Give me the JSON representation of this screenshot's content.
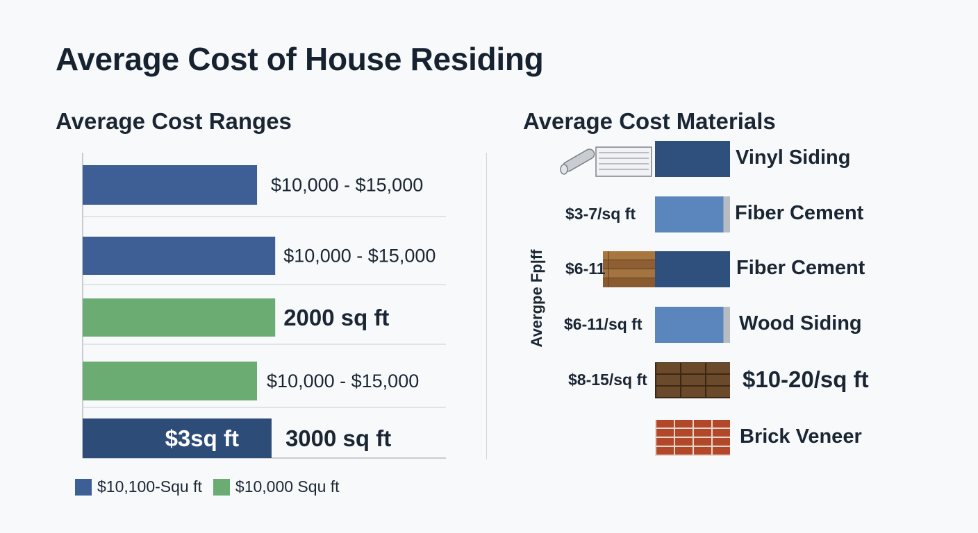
{
  "title": "Average Cost of House Residing",
  "left_panel": {
    "subtitle": "Average Cost Ranges",
    "legend": [
      {
        "label": "$10,100-Squ ft",
        "color": "#3d5f95"
      },
      {
        "label": "$10,000 Squ ft",
        "color": "#6aac72"
      }
    ]
  },
  "chart_data": [
    {
      "type": "bar",
      "orientation": "horizontal",
      "title": "Average Cost Ranges",
      "categories": [
        "",
        "",
        "",
        "",
        ""
      ],
      "values": [
        0.48,
        0.53,
        0.53,
        0.48,
        0.52
      ],
      "value_units": "fraction of plot width",
      "bar_labels": [
        "$10,000 - $15,000",
        "$10,000 - $15,000",
        "2000 sq ft",
        "$10,000 - $15,000",
        "3000 sq ft"
      ],
      "inner_labels": [
        "",
        "",
        "",
        "",
        "$3sq ft"
      ],
      "label_bold": [
        false,
        false,
        true,
        false,
        true
      ],
      "colors": [
        "#3d5f95",
        "#3d5f95",
        "#6aac72",
        "#6aac72",
        "#2d4c78"
      ],
      "grid": true,
      "legend_position": "bottom-left"
    },
    {
      "type": "table",
      "title": "Average Cost Materials",
      "ylabel": "Avergpe Fp|ff",
      "rows": [
        {
          "price": "",
          "name": "Vinyl Siding",
          "color": "#2f4f7c",
          "texture": "solid",
          "icon": "vinyl-siding-icon"
        },
        {
          "price": "$3-7/sq ft",
          "name": "Fiber Cement",
          "color": "#5b86bd",
          "texture": "solid-edge",
          "icon": ""
        },
        {
          "price": "$6-11",
          "name": "Fiber Cement",
          "color": "#2f4f7c",
          "texture": "solid",
          "icon": "wood-plank-icon"
        },
        {
          "price": "$6-11/sq ft",
          "name": "Wood Siding",
          "color": "#5b86bd",
          "texture": "solid-edge",
          "icon": ""
        },
        {
          "price": "$8-15/sq ft",
          "name": "$10-20/sq ft",
          "color": "#6b4a2c",
          "texture": "shingle",
          "icon": ""
        },
        {
          "price": "",
          "name": "Brick Veneer",
          "color": "#b2472a",
          "texture": "brick",
          "icon": ""
        }
      ]
    }
  ]
}
